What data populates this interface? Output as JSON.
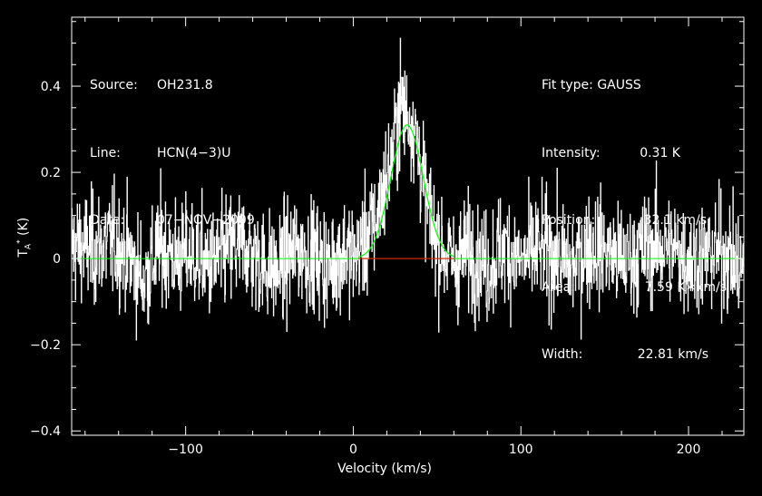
{
  "header": {
    "source_label": "Source:",
    "source": "OH231.8",
    "line_label": "Line:",
    "line": "HCN(4−3)U",
    "date_label": "Date:",
    "date": "07−NOV−2009"
  },
  "fit": {
    "type_label": "Fit type:",
    "type": "GAUSS",
    "intensity_label": "Intensity:",
    "intensity": "0.31 K",
    "position_label": "Position:",
    "position": "32.1 km/s",
    "area_label": "Area:",
    "area": "7.59 K∗km/s",
    "width_label": "Width:",
    "width": "22.81 km/s"
  },
  "chart_data": {
    "type": "line",
    "xlabel": "Velocity (km/s)",
    "ylabel_main": "T",
    "ylabel_sub": "A",
    "ylabel_sup": "*",
    "ylabel_unit": " (K)",
    "xlim": [
      -168,
      233
    ],
    "ylim": [
      -0.41,
      0.56
    ],
    "xticks": [
      -100,
      0,
      100,
      200
    ],
    "xtick_labels": [
      "−100",
      "0",
      "100",
      "200"
    ],
    "yticks": [
      -0.4,
      -0.2,
      0,
      0.2,
      0.4
    ],
    "ytick_labels": [
      "−0.4",
      "−0.2",
      "0",
      "0.2",
      "0.4"
    ],
    "series": [
      {
        "kind": "spectrum",
        "color": "#ffffff",
        "noise_rms": 0.09,
        "x": [
          -165,
          -155,
          -145,
          -135,
          -125,
          -115,
          -105,
          -95,
          -85,
          -75,
          -65,
          -55,
          -45,
          -35,
          -25,
          -15,
          -5,
          0,
          5,
          10,
          15,
          20,
          22,
          24,
          26,
          28,
          30,
          32,
          34,
          36,
          38,
          40,
          42,
          44,
          46,
          50,
          55,
          60,
          70,
          80,
          90,
          100,
          110,
          120,
          130,
          140,
          150,
          160,
          170,
          180,
          190,
          200,
          210,
          220,
          230
        ],
        "y": [
          0.03,
          0.02,
          0.04,
          0.01,
          -0.05,
          0.03,
          0.0,
          0.01,
          -0.02,
          0.02,
          0.03,
          -0.01,
          -0.03,
          0.02,
          0.01,
          -0.02,
          0.02,
          0.0,
          0.03,
          0.06,
          0.11,
          0.19,
          0.22,
          0.27,
          0.31,
          0.36,
          0.35,
          0.33,
          0.33,
          0.31,
          0.27,
          0.22,
          0.17,
          0.13,
          0.09,
          0.04,
          0.01,
          -0.01,
          0.02,
          -0.02,
          0.03,
          -0.01,
          0.02,
          0.01,
          -0.02,
          0.03,
          0.02,
          -0.01,
          0.01,
          0.03,
          0.02,
          0.0,
          0.01,
          0.02,
          -0.02
        ]
      },
      {
        "kind": "gaussian_fit",
        "color": "#00ff00",
        "amplitude": 0.31,
        "center": 32.1,
        "fwhm": 22.81
      },
      {
        "kind": "baseline",
        "color": "#00ff00",
        "y": 0
      },
      {
        "kind": "fit_window",
        "color": "#ff0000",
        "x": [
          3,
          60
        ],
        "y": 0
      }
    ]
  }
}
